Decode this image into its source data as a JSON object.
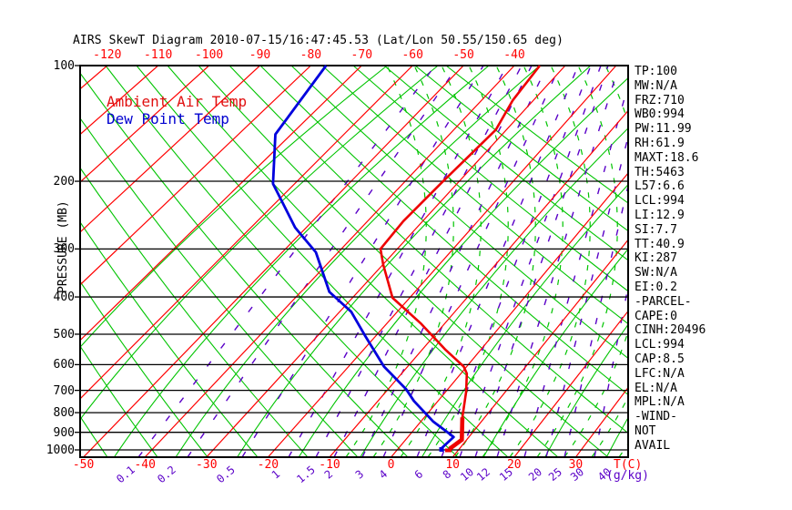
{
  "title": "AIRS SkewT Diagram 2010-07-15/16:47:45.53 (Lat/Lon 50.55/150.65 deg)",
  "legend": {
    "temperature": "Ambient Air Temp",
    "dewpoint": "Dew Point Temp"
  },
  "axes": {
    "pressure_label": "PRESSURE (MB)",
    "pressure_ticks": [
      100,
      200,
      300,
      400,
      500,
      600,
      700,
      800,
      900,
      1000
    ],
    "top_temp_labels": [
      -120,
      -110,
      -100,
      -90,
      -80,
      -70,
      -60,
      -50,
      -40
    ],
    "bottom_temp_labels": [
      -50,
      -40,
      -30,
      -20,
      -10,
      0,
      10,
      20,
      30
    ],
    "temp_axis_label": "T(C)",
    "mixing_ratio_labels": [
      0.1,
      0.2,
      0.5,
      1,
      1.5,
      2,
      3,
      4,
      6,
      8,
      10,
      12,
      15,
      20,
      25,
      30,
      40
    ],
    "mixing_axis_label": "(g/kg)"
  },
  "annotations": [
    "TP:100",
    "MW:N/A",
    "FRZ:710",
    "WB0:994",
    "PW:11.99",
    "RH:61.9",
    "MAXT:18.6",
    "TH:5463",
    "L57:6.6",
    "LCL:994",
    "LI:12.9",
    "SI:7.7",
    "TT:40.9",
    "KI:287",
    "SW:N/A",
    "EI:0.2",
    "-PARCEL-",
    "CAPE:0",
    "CINH:20496",
    "LCL:994",
    "CAP:8.5",
    "LFC:N/A",
    "EL:N/A",
    "MPL:N/A",
    "-WIND-",
    "NOT",
    "AVAIL"
  ],
  "colors": {
    "isotherm_red": "#ff0000",
    "adiabat_green": "#00c400",
    "mixing_purple": "#5a00c8",
    "temperature_red": "#ee0000",
    "dewpoint_blue": "#0000dd",
    "axis_black": "#000000"
  },
  "chart_data": {
    "type": "line",
    "title": "AIRS SkewT Diagram 2010-07-15/16:47:45.53 (Lat/Lon 50.55/150.65 deg)",
    "xlabel": "T(C)",
    "ylabel": "PRESSURE (MB)",
    "x_range_c": [
      -120,
      40
    ],
    "pressure_range_mb": [
      100,
      1050
    ],
    "y_scale": "log-pressure (skew-T)",
    "grid": "isotherms every 10C (red), intermediate green lines, dry adiabats (green), moist adiabats (green dashed), mixing ratio 0.1-40 g/kg (purple dashed)",
    "legend_position": "top-left inside plot",
    "series": [
      {
        "name": "Ambient Air Temp",
        "pressure_mb": [
          100,
          123,
          147,
          201,
          254,
          300,
          329,
          402,
          470,
          549,
          607,
          633,
          705,
          823,
          941,
          994
        ],
        "temp_c": [
          -35,
          -34,
          -32,
          -33,
          -33.5,
          -33,
          -30,
          -23,
          -14,
          -6,
          -0.5,
          1,
          3.4,
          6.3,
          9.2,
          8.4
        ]
      },
      {
        "name": "Dew Point Temp",
        "pressure_mb": [
          100,
          151,
          203,
          264,
          306,
          388,
          437,
          503,
          607,
          695,
          746,
          843,
          902,
          926,
          994
        ],
        "temp_c": [
          -77,
          -73,
          -64,
          -52,
          -44,
          -35,
          -28,
          -22,
          -14,
          -7,
          -4,
          2,
          6,
          7.5,
          7
        ]
      }
    ]
  }
}
